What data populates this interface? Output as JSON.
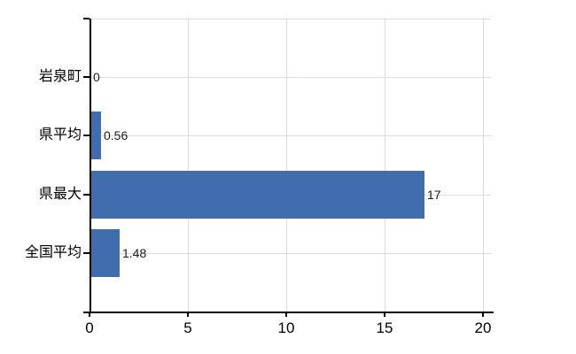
{
  "chart_data": {
    "type": "bar",
    "orientation": "horizontal",
    "title": "",
    "categories": [
      "岩泉町",
      "県平均",
      "県最大",
      "全国平均"
    ],
    "values": [
      0,
      0.56,
      17,
      1.48
    ],
    "value_labels": [
      "0",
      "0.56",
      "17",
      "1.48"
    ],
    "xlim": [
      0,
      20
    ],
    "x_ticks": [
      0,
      5,
      10,
      15,
      20
    ],
    "x_tick_labels": [
      "0",
      "5",
      "10",
      "15",
      "20"
    ],
    "grid": true,
    "legend": false,
    "colors": {
      "bar": "#3f6dad",
      "gridline": "#d8ded8",
      "axis": "#000000",
      "category_text": "#000000",
      "value_text": "#1c1c1c",
      "tick_text": "#000000",
      "background": "#ffffff"
    }
  }
}
